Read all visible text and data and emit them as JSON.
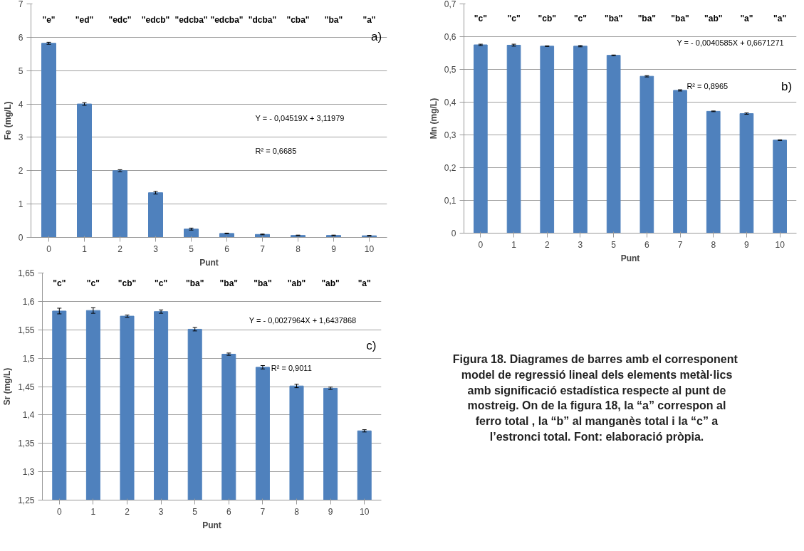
{
  "chart_data": [
    {
      "type": "bar",
      "categories": [
        "0",
        "1",
        "2",
        "3",
        "5",
        "6",
        "7",
        "8",
        "9",
        "10"
      ],
      "xlabel": "Punt",
      "ylabel": "Fe (mg/L)",
      "color": "#4f81bd",
      "grid": "y",
      "values": [
        5.82,
        4.0,
        2.0,
        1.34,
        0.25,
        0.12,
        0.09,
        0.06,
        0.06,
        0.05
      ],
      "errors": [
        0.03,
        0.04,
        0.03,
        0.04,
        0.03,
        0.01,
        0.01,
        0.01,
        0.01,
        0.01
      ],
      "ylim": [
        0,
        7
      ],
      "yticks": [
        0,
        1,
        2,
        3,
        4,
        5,
        6,
        7
      ],
      "annotations": [
        "\"e\"",
        "\"ed\"",
        "\"edc\"",
        "\"edcb\"",
        "\"edcba\"",
        "\"edcba\"",
        "\"dcba\"",
        "\"cba\"",
        "\"ba\"",
        "\"a\"",
        "Y = - 0,04519X + 3,11979",
        "R² = 0,6685",
        "a)"
      ]
    },
    {
      "type": "bar",
      "categories": [
        "0",
        "1",
        "2",
        "3",
        "5",
        "6",
        "7",
        "8",
        "9",
        "10"
      ],
      "xlabel": "Punt",
      "ylabel": "Mn (mg/L)",
      "color": "#4f81bd",
      "grid": "y",
      "values": [
        0.575,
        0.574,
        0.571,
        0.571,
        0.543,
        0.479,
        0.436,
        0.372,
        0.365,
        0.284
      ],
      "errors": [
        0.002,
        0.003,
        0.001,
        0.002,
        0.001,
        0.002,
        0.002,
        0.001,
        0.002,
        0.001
      ],
      "ylim": [
        0,
        0.7
      ],
      "yticks": [
        0,
        {
          "value": 0.1,
          "label": "0,1"
        },
        {
          "value": 0.2,
          "label": "0,2"
        },
        {
          "value": 0.3,
          "label": "0,3"
        },
        {
          "value": 0.4,
          "label": "0,4"
        },
        {
          "value": 0.5,
          "label": "0,5"
        },
        {
          "value": 0.6,
          "label": "0,6"
        },
        {
          "value": 0.7,
          "label": "0,7"
        }
      ],
      "annotations": [
        "\"c\"",
        "\"c\"",
        "\"cb\"",
        "\"c\"",
        "\"ba\"",
        "\"ba\"",
        "\"ba\"",
        "\"ab\"",
        "\"a\"",
        "\"a\"",
        "Y = - 0,0040585X + 0,6671271",
        "R² = 0,8965",
        "b)"
      ]
    },
    {
      "type": "bar",
      "categories": [
        "0",
        "1",
        "2",
        "3",
        "5",
        "6",
        "7",
        "8",
        "9",
        "10"
      ],
      "xlabel": "Punt",
      "ylabel": "Sr (mg/L)",
      "color": "#4f81bd",
      "grid": "y",
      "values": [
        1.583,
        1.584,
        1.574,
        1.582,
        1.551,
        1.507,
        1.484,
        1.451,
        1.447,
        1.372
      ],
      "errors": [
        0.005,
        0.005,
        0.002,
        0.003,
        0.003,
        0.002,
        0.003,
        0.003,
        0.002,
        0.002
      ],
      "ylim": [
        1.25,
        1.65
      ],
      "yticks": [
        {
          "value": 1.25,
          "label": "1,25"
        },
        {
          "value": 1.3,
          "label": "1,3"
        },
        {
          "value": 1.35,
          "label": "1,35"
        },
        {
          "value": 1.4,
          "label": "1,4"
        },
        {
          "value": 1.45,
          "label": "1,45"
        },
        {
          "value": 1.5,
          "label": "1,5"
        },
        {
          "value": 1.55,
          "label": "1,55"
        },
        {
          "value": 1.6,
          "label": "1,6"
        },
        {
          "value": 1.65,
          "label": "1,65"
        }
      ],
      "annotations": [
        "\"c\"",
        "\"c\"",
        "\"cb\"",
        "\"c\"",
        "\"ba\"",
        "\"ba\"",
        "\"ba\"",
        "\"ab\"",
        "\"ab\"",
        "\"a\"",
        "Y = - 0,0027964X + 1,6437868",
        "R² = 0,9011",
        "c)"
      ]
    },
    {
      "type": "other",
      "annotations": [
        "Figura 18. Diagrames de barres  amb el corresponent model de regressió lineal dels elements metàl·lics amb significació estadística respecte al punt de mostreig. On de la figura 18, la “a” correspon al ferro total , la “b” al manganès total i la “c” a l’estronci total. Font: elaboració pròpia."
      ]
    }
  ]
}
